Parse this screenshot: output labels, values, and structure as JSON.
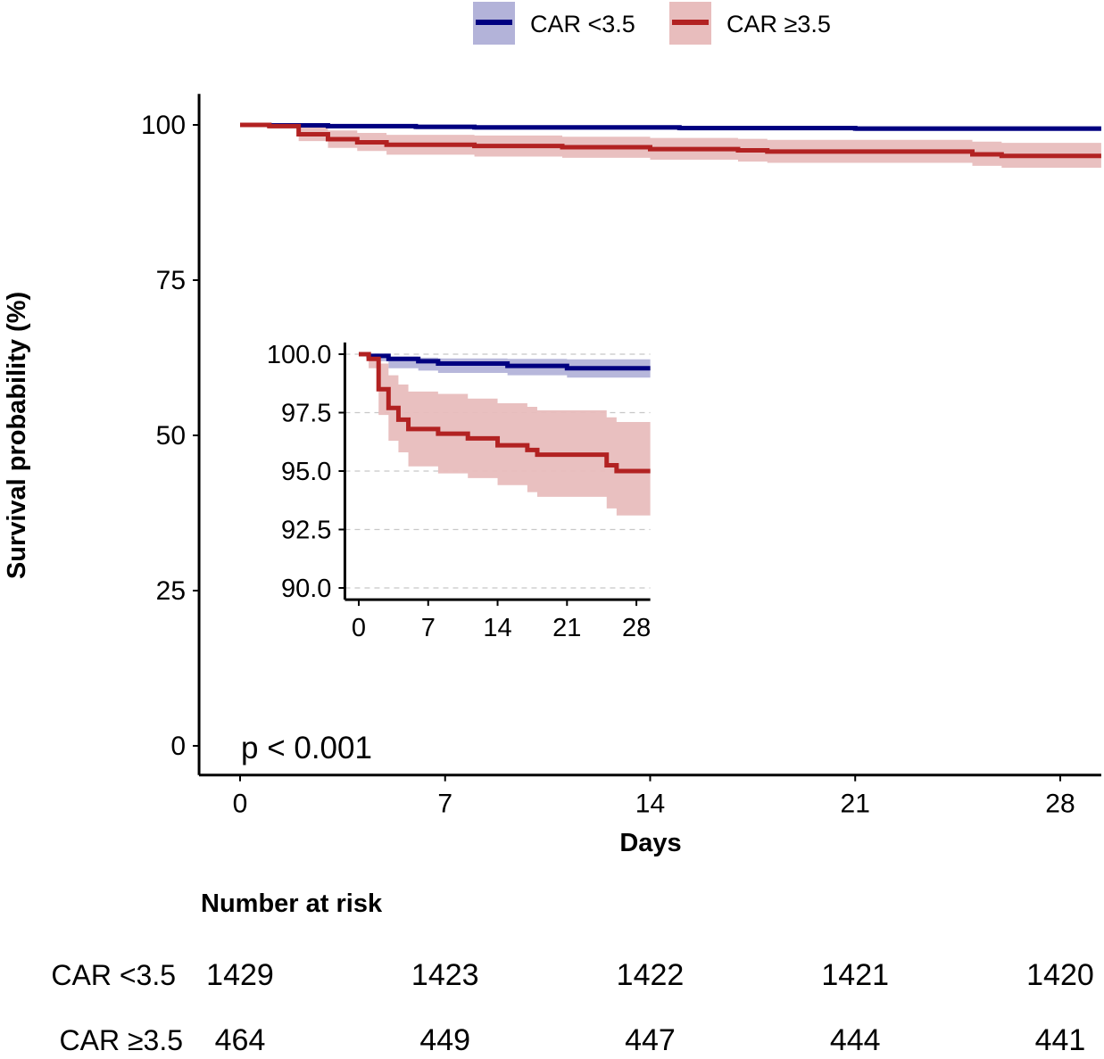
{
  "chart_data": {
    "type": "line",
    "subtype": "kaplan-meier step curves with confidence bands",
    "xlabel": "Days",
    "ylabel": "Survival probability (%)",
    "xlim": [
      -1.4,
      29.4
    ],
    "ylim": [
      -4.7,
      105
    ],
    "x_ticks": [
      0,
      7,
      14,
      21,
      28
    ],
    "x_tick_labels": [
      "0",
      "7",
      "14",
      "21",
      "28"
    ],
    "y_ticks": [
      0,
      25,
      50,
      75,
      100
    ],
    "y_tick_labels": [
      "0",
      "25",
      "50",
      "75",
      "100"
    ],
    "grid": false,
    "legend_position": "top",
    "annotation": "p < 0.001",
    "series": [
      {
        "name": "CAR <3.5",
        "color": "#000080",
        "band_color": "#b3b3d9",
        "time": [
          0,
          1,
          3,
          6,
          8,
          15,
          21
        ],
        "surv": [
          100,
          99.93,
          99.8,
          99.7,
          99.6,
          99.5,
          99.4
        ],
        "lower": [
          100,
          99.7,
          99.4,
          99.3,
          99.2,
          99.1,
          99.0
        ],
        "upper": [
          100,
          100,
          99.9,
          99.85,
          99.82,
          99.8,
          99.78
        ]
      },
      {
        "name": "CAR ≥3.5",
        "color": "#b22222",
        "band_color": "#e8bdbd",
        "time": [
          0,
          1,
          2,
          3,
          4,
          5,
          8,
          11,
          14,
          17,
          18,
          25,
          26
        ],
        "surv": [
          100,
          99.8,
          98.5,
          97.7,
          97.2,
          96.8,
          96.6,
          96.4,
          96.1,
          95.9,
          95.7,
          95.25,
          95.0
        ],
        "lower": [
          100,
          99.4,
          97.4,
          96.3,
          95.8,
          95.2,
          94.9,
          94.7,
          94.4,
          94.1,
          93.9,
          93.4,
          93.1
        ],
        "upper": [
          100,
          100,
          99.6,
          99.1,
          98.7,
          98.4,
          98.3,
          98.1,
          97.9,
          97.75,
          97.6,
          97.3,
          97.1
        ]
      }
    ],
    "inset": {
      "xlim": [
        -1.4,
        29.4
      ],
      "ylim": [
        89.5,
        100.5
      ],
      "x_ticks": [
        0,
        7,
        14,
        21,
        28
      ],
      "x_tick_labels": [
        "0",
        "7",
        "14",
        "21",
        "28"
      ],
      "y_ticks": [
        90,
        92.5,
        95,
        97.5,
        100
      ],
      "y_tick_labels": [
        "90.0",
        "92.5",
        "95.0",
        "97.5",
        "100.0"
      ],
      "grid": "horizontal dashed"
    },
    "risk_table": {
      "title": "Number at risk",
      "times": [
        0,
        7,
        14,
        21,
        28
      ],
      "rows": [
        {
          "label": "CAR <3.5",
          "values": [
            "1429",
            "1423",
            "1422",
            "1421",
            "1420"
          ]
        },
        {
          "label": "CAR ≥3.5",
          "values": [
            "464",
            "449",
            "447",
            "444",
            "441"
          ]
        }
      ]
    }
  }
}
